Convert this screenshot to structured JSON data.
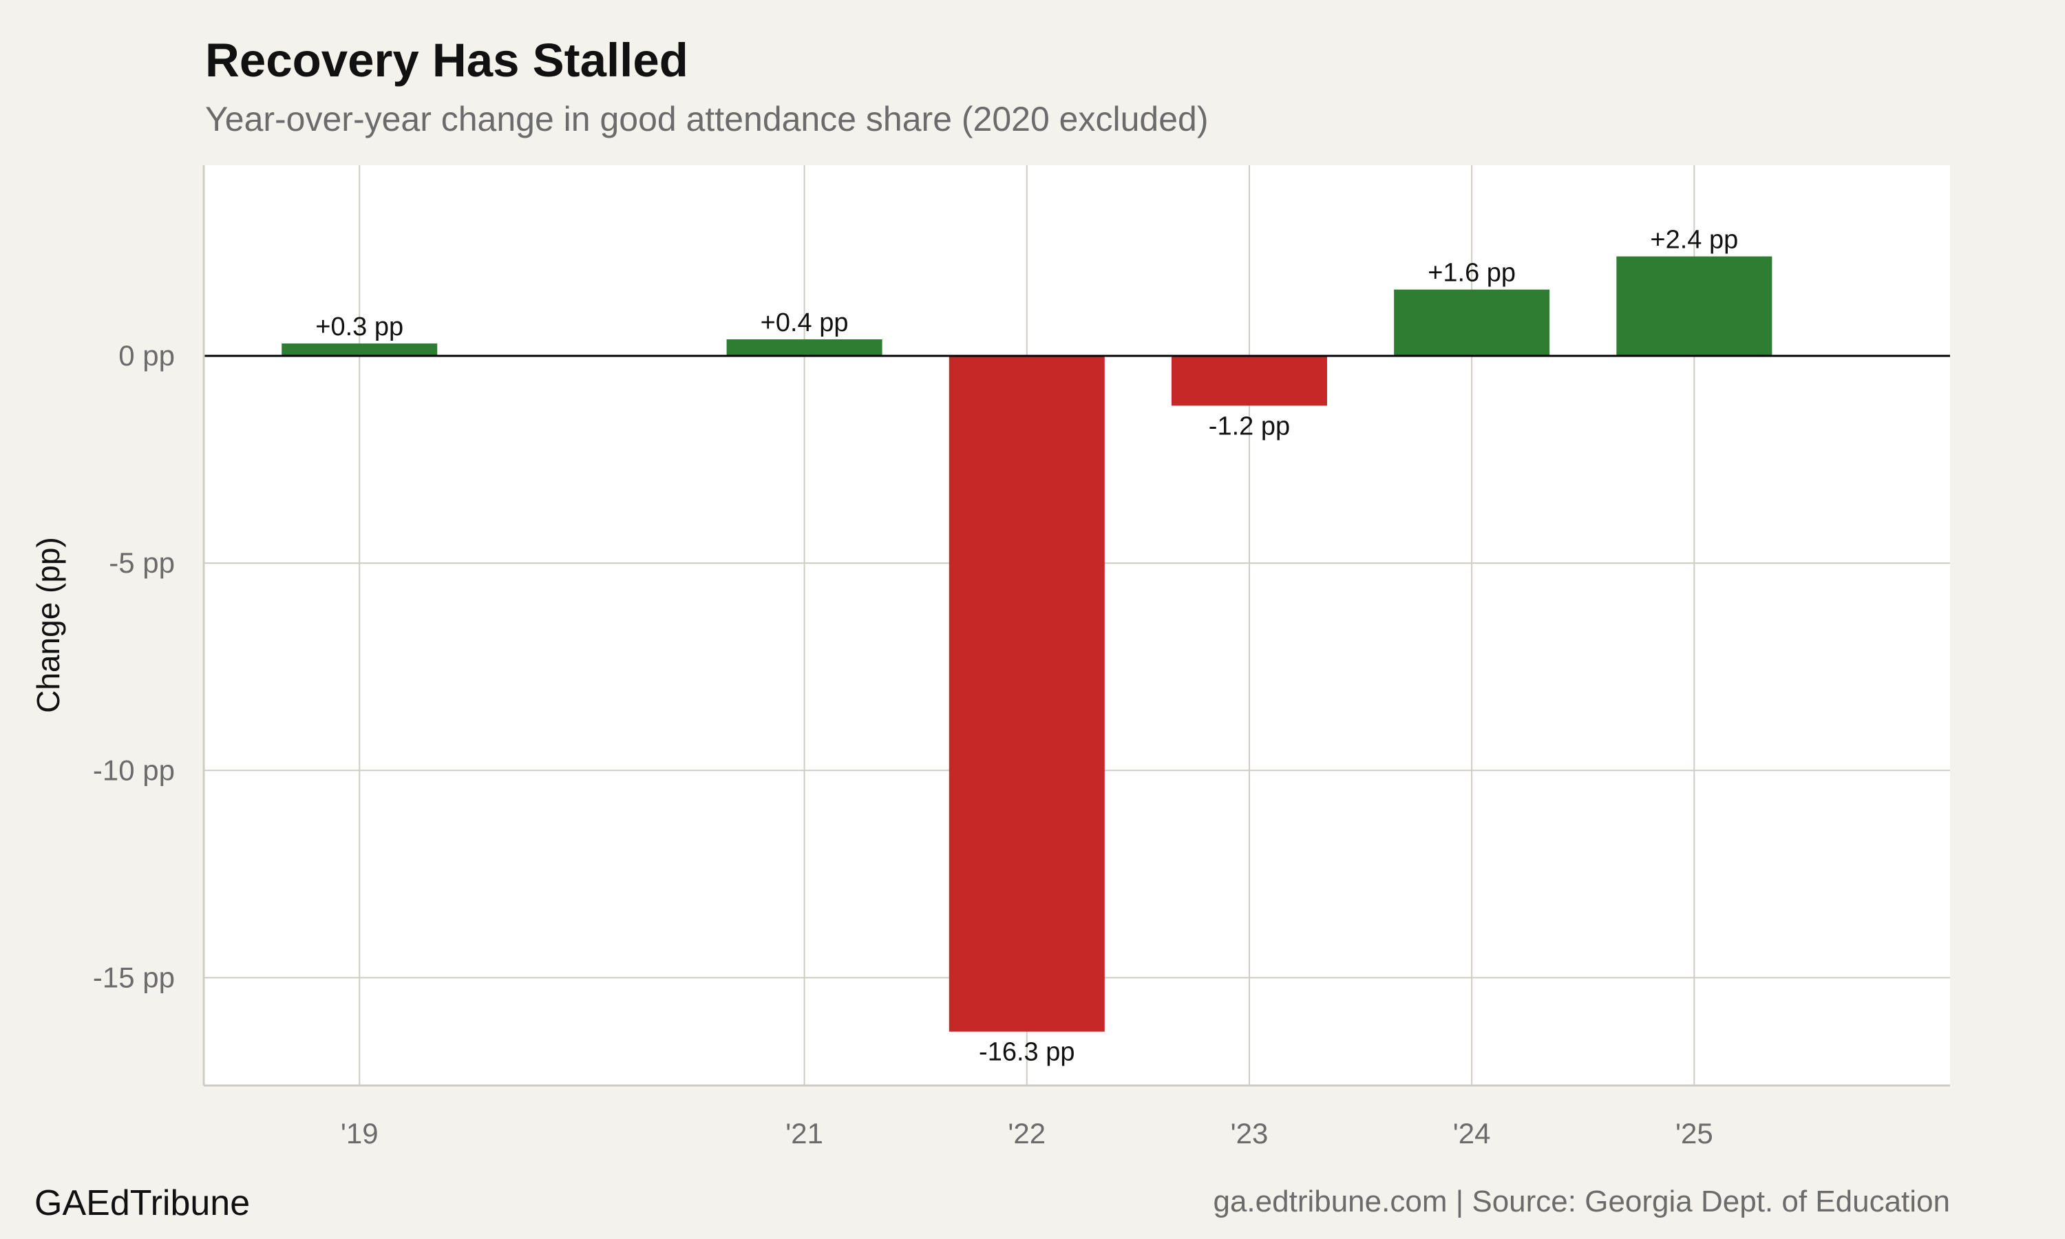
{
  "chart_data": {
    "type": "bar",
    "title": "Recovery Has Stalled",
    "subtitle": "Year-over-year change in good attendance share (2020 excluded)",
    "ylabel": "Change (pp)",
    "xlabel": "",
    "categories": [
      "'19",
      "'21",
      "'22",
      "'23",
      "'24",
      "'25"
    ],
    "x": [
      2019,
      2021,
      2022,
      2023,
      2024,
      2025
    ],
    "values": [
      0.3,
      0.4,
      -16.3,
      -1.2,
      1.6,
      2.4
    ],
    "data_labels": [
      "+0.3 pp",
      "+0.4 pp",
      "-16.3 pp",
      "-1.2 pp",
      "+1.6 pp",
      "+2.4 pp"
    ],
    "xlim": [
      2018.3,
      2026.15
    ],
    "ylim": [
      -17.6,
      4.6
    ],
    "y_ticks": [
      0,
      -5,
      -10,
      -15
    ],
    "y_tick_labels": [
      "0 pp",
      "-5 pp",
      "-10 pp",
      "-15 pp"
    ],
    "grid": true,
    "legend": "none",
    "colors": {
      "positive": "#2e7d32",
      "negative": "#c62828",
      "zero_line": "#000000",
      "grid": "#cfccc5",
      "panel": "#ffffff",
      "background": "#f4f2ed"
    }
  },
  "footer": {
    "brand": "GAEdTribune",
    "source": "ga.edtribune.com | Source: Georgia Dept. of Education"
  }
}
